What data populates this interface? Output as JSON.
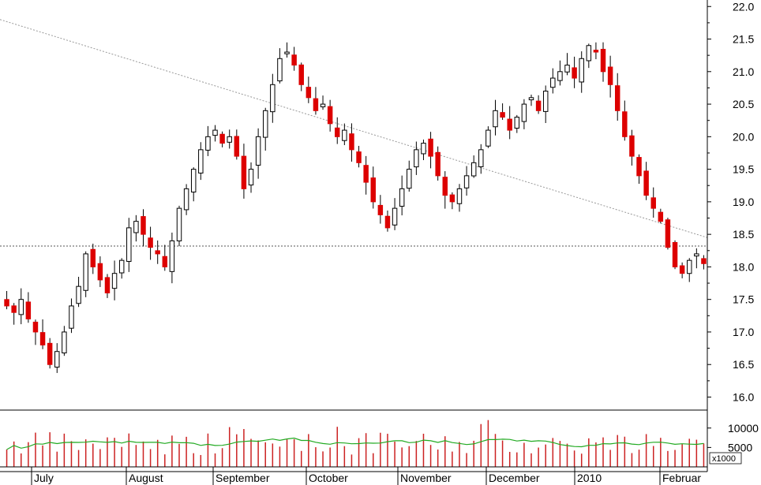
{
  "chart_data": {
    "type": "candlestick",
    "title": "",
    "price_axis": {
      "ticks": [
        "22.0",
        "21.5",
        "21.0",
        "20.5",
        "20.0",
        "19.5",
        "19.0",
        "18.5",
        "18.0",
        "17.5",
        "17.0",
        "16.5",
        "16.0"
      ],
      "ylim": [
        15.8,
        22.1
      ]
    },
    "volume_axis": {
      "ticks": [
        "10000",
        "5000"
      ],
      "unit": "x1000",
      "ylim": [
        0,
        13000
      ]
    },
    "months": [
      "July",
      "August",
      "September",
      "October",
      "November",
      "December",
      "2010",
      "Februar"
    ],
    "reference_line": 18.32,
    "trendline": {
      "start": 21.8,
      "end": 18.45
    },
    "colors": {
      "up": "#ffffff",
      "down": "#dd0000",
      "wick": "#000000",
      "volume": "#cc2222",
      "volume_ma": "#22aa22",
      "grid": "#888888"
    },
    "closes": [
      17.4,
      17.3,
      17.5,
      17.2,
      17.0,
      16.8,
      16.5,
      16.7,
      17.0,
      17.4,
      17.7,
      18.2,
      18.0,
      17.8,
      17.6,
      17.9,
      18.1,
      18.6,
      18.7,
      18.5,
      18.3,
      18.2,
      18.0,
      18.4,
      18.9,
      19.2,
      19.5,
      19.8,
      20.0,
      20.1,
      19.9,
      20.0,
      19.7,
      19.2,
      19.5,
      20.0,
      20.4,
      20.8,
      21.2,
      21.3,
      21.1,
      20.8,
      20.6,
      20.4,
      20.5,
      20.2,
      20.0,
      20.1,
      19.8,
      19.6,
      19.3,
      19.0,
      18.8,
      18.6,
      18.9,
      19.2,
      19.5,
      19.8,
      19.9,
      19.7,
      19.4,
      19.1,
      19.0,
      19.2,
      19.4,
      19.6,
      19.8,
      20.1,
      20.4,
      20.3,
      20.1,
      20.3,
      20.5,
      20.6,
      20.4,
      20.7,
      20.9,
      21.0,
      21.1,
      20.9,
      21.2,
      21.4,
      21.3,
      21.0,
      20.8,
      20.4,
      20.0,
      19.7,
      19.4,
      19.1,
      18.9,
      18.7,
      18.3,
      18.0,
      17.9,
      18.1,
      18.2,
      18.05
    ]
  }
}
